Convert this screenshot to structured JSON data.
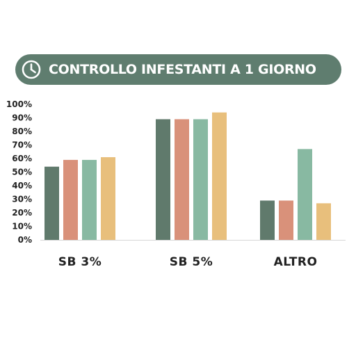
{
  "header": {
    "title": "CONTROLLO INFESTANTI A 1 GIORNO",
    "icon": "clock-icon",
    "background": "#5f7d6f",
    "text_color": "#ffffff"
  },
  "chart_data": {
    "type": "bar",
    "title": "CONTROLLO INFESTANTI A 1 GIORNO",
    "categories": [
      "SB 3%",
      "SB 5%",
      "ALTRO"
    ],
    "series": [
      {
        "color": "#607a6c",
        "values": [
          54,
          89,
          29
        ]
      },
      {
        "color": "#d9917a",
        "values": [
          59,
          89,
          29
        ]
      },
      {
        "color": "#88b9a2",
        "values": [
          59,
          89,
          67
        ]
      },
      {
        "color": "#e8bf7c",
        "values": [
          61,
          94,
          27
        ]
      }
    ],
    "ylim": [
      0,
      100
    ],
    "yticks": [
      "0%",
      "10%",
      "20%",
      "30%",
      "40%",
      "50%",
      "60%",
      "70%",
      "80%",
      "90%",
      "100%"
    ],
    "xlabel": "",
    "ylabel": "",
    "grid": false,
    "legend": "none"
  }
}
